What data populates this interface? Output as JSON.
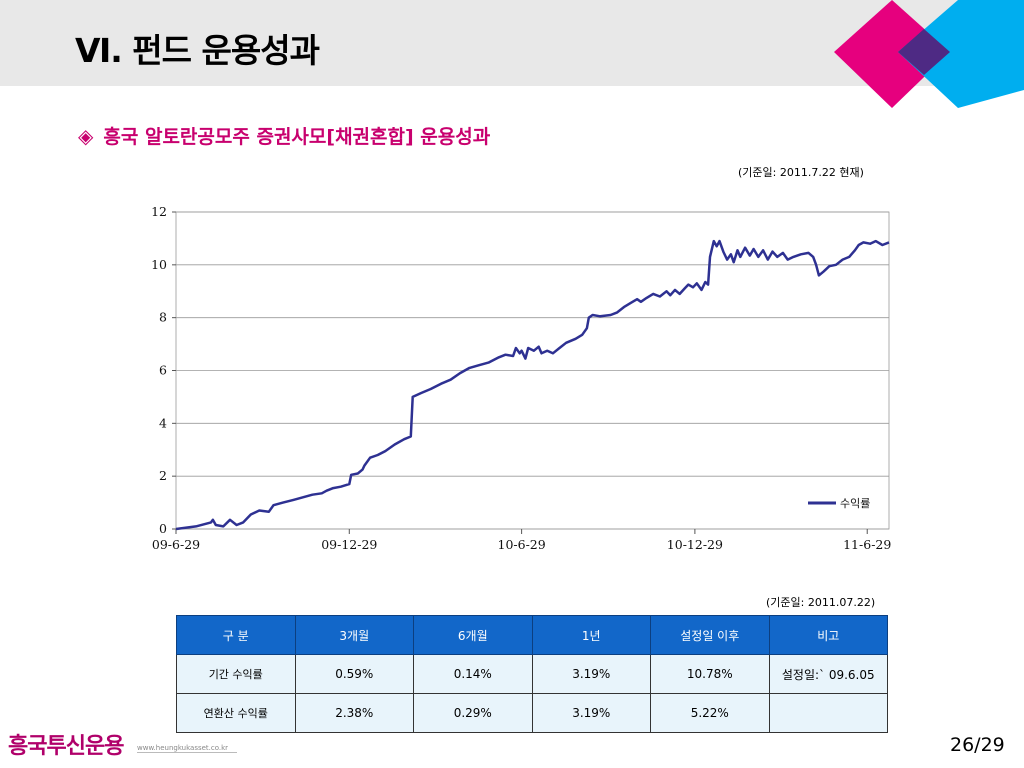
{
  "header": {
    "title": "Ⅵ. 펀드 운용성과"
  },
  "colors": {
    "accent_pink": "#e6007e",
    "accent_cyan": "#00aeef",
    "accent_purple": "#4e2a84",
    "line_blue": "#2e3192",
    "table_header_blue": "#1267c9",
    "table_cell_bg": "#e8f4fb",
    "logo_magenta": "#b0006a"
  },
  "section": {
    "icon": "diamond-icon",
    "icon_glyph": "◈",
    "title": "흥국 알토란공모주 증권사모[채권혼합] 운용성과"
  },
  "chart_basedate": "(기준일:  2011.7.22  현재)",
  "chart_data": {
    "type": "line",
    "title": "",
    "xlabel": "",
    "ylabel": "",
    "x_ticks": [
      "09-6-29",
      "09-12-29",
      "10-6-29",
      "10-12-29",
      "11-6-29"
    ],
    "y_ticks": [
      "0",
      "2",
      "4",
      "6",
      "8",
      "10",
      "12"
    ],
    "xlim": [
      "2009-06-29",
      "2011-07-22"
    ],
    "ylim": [
      0,
      12
    ],
    "grid": "horizontal",
    "legend": "bottom-right",
    "series": [
      {
        "name": "수익률",
        "color": "#2e3192",
        "points": [
          [
            "2009-06-29",
            0.0
          ],
          [
            "2009-07-20",
            0.1
          ],
          [
            "2009-08-05",
            0.25
          ],
          [
            "2009-08-07",
            0.35
          ],
          [
            "2009-08-10",
            0.15
          ],
          [
            "2009-08-18",
            0.1
          ],
          [
            "2009-08-25",
            0.35
          ],
          [
            "2009-09-01",
            0.15
          ],
          [
            "2009-09-08",
            0.25
          ],
          [
            "2009-09-16",
            0.55
          ],
          [
            "2009-09-25",
            0.7
          ],
          [
            "2009-10-05",
            0.65
          ],
          [
            "2009-10-10",
            0.9
          ],
          [
            "2009-10-20",
            1.0
          ],
          [
            "2009-10-31",
            1.1
          ],
          [
            "2009-11-10",
            1.2
          ],
          [
            "2009-11-20",
            1.3
          ],
          [
            "2009-11-30",
            1.35
          ],
          [
            "2009-12-05",
            1.45
          ],
          [
            "2009-12-12",
            1.55
          ],
          [
            "2009-12-20",
            1.6
          ],
          [
            "2009-12-29",
            1.7
          ],
          [
            "2009-12-31",
            2.05
          ],
          [
            "2010-01-07",
            2.1
          ],
          [
            "2010-01-12",
            2.25
          ],
          [
            "2010-01-14",
            2.4
          ],
          [
            "2010-01-20",
            2.7
          ],
          [
            "2010-01-28",
            2.8
          ],
          [
            "2010-02-05",
            2.95
          ],
          [
            "2010-02-15",
            3.2
          ],
          [
            "2010-02-25",
            3.4
          ],
          [
            "2010-03-04",
            3.5
          ],
          [
            "2010-03-06",
            5.0
          ],
          [
            "2010-03-15",
            5.15
          ],
          [
            "2010-03-25",
            5.3
          ],
          [
            "2010-04-05",
            5.5
          ],
          [
            "2010-04-15",
            5.65
          ],
          [
            "2010-04-25",
            5.9
          ],
          [
            "2010-05-05",
            6.1
          ],
          [
            "2010-05-15",
            6.2
          ],
          [
            "2010-05-25",
            6.3
          ],
          [
            "2010-06-05",
            6.5
          ],
          [
            "2010-06-12",
            6.6
          ],
          [
            "2010-06-20",
            6.55
          ],
          [
            "2010-06-23",
            6.85
          ],
          [
            "2010-06-27",
            6.65
          ],
          [
            "2010-06-29",
            6.75
          ],
          [
            "2010-07-03",
            6.45
          ],
          [
            "2010-07-06",
            6.85
          ],
          [
            "2010-07-12",
            6.75
          ],
          [
            "2010-07-17",
            6.9
          ],
          [
            "2010-07-20",
            6.65
          ],
          [
            "2010-07-26",
            6.75
          ],
          [
            "2010-08-01",
            6.65
          ],
          [
            "2010-08-08",
            6.85
          ],
          [
            "2010-08-15",
            7.05
          ],
          [
            "2010-08-25",
            7.2
          ],
          [
            "2010-09-01",
            7.35
          ],
          [
            "2010-09-06",
            7.6
          ],
          [
            "2010-09-08",
            8.0
          ],
          [
            "2010-09-12",
            8.1
          ],
          [
            "2010-09-20",
            8.05
          ],
          [
            "2010-10-01",
            8.1
          ],
          [
            "2010-10-08",
            8.2
          ],
          [
            "2010-10-15",
            8.4
          ],
          [
            "2010-10-22",
            8.55
          ],
          [
            "2010-10-29",
            8.7
          ],
          [
            "2010-11-02",
            8.6
          ],
          [
            "2010-11-08",
            8.75
          ],
          [
            "2010-11-15",
            8.9
          ],
          [
            "2010-11-22",
            8.8
          ],
          [
            "2010-11-29",
            9.0
          ],
          [
            "2010-12-03",
            8.85
          ],
          [
            "2010-12-08",
            9.05
          ],
          [
            "2010-12-13",
            8.9
          ],
          [
            "2010-12-18",
            9.1
          ],
          [
            "2010-12-22",
            9.25
          ],
          [
            "2010-12-27",
            9.15
          ],
          [
            "2010-12-31",
            9.3
          ],
          [
            "2011-01-05",
            9.05
          ],
          [
            "2011-01-09",
            9.35
          ],
          [
            "2011-01-12",
            9.25
          ],
          [
            "2011-01-14",
            10.3
          ],
          [
            "2011-01-18",
            10.9
          ],
          [
            "2011-01-21",
            10.7
          ],
          [
            "2011-01-24",
            10.9
          ],
          [
            "2011-01-28",
            10.5
          ],
          [
            "2011-02-01",
            10.2
          ],
          [
            "2011-02-05",
            10.4
          ],
          [
            "2011-02-08",
            10.1
          ],
          [
            "2011-02-12",
            10.55
          ],
          [
            "2011-02-15",
            10.3
          ],
          [
            "2011-02-20",
            10.65
          ],
          [
            "2011-02-25",
            10.35
          ],
          [
            "2011-03-01",
            10.6
          ],
          [
            "2011-03-06",
            10.3
          ],
          [
            "2011-03-11",
            10.55
          ],
          [
            "2011-03-16",
            10.2
          ],
          [
            "2011-03-21",
            10.5
          ],
          [
            "2011-03-26",
            10.3
          ],
          [
            "2011-04-01",
            10.45
          ],
          [
            "2011-04-06",
            10.2
          ],
          [
            "2011-04-12",
            10.3
          ],
          [
            "2011-04-20",
            10.4
          ],
          [
            "2011-04-28",
            10.45
          ],
          [
            "2011-05-03",
            10.3
          ],
          [
            "2011-05-06",
            10.0
          ],
          [
            "2011-05-09",
            9.6
          ],
          [
            "2011-05-14",
            9.75
          ],
          [
            "2011-05-20",
            9.95
          ],
          [
            "2011-05-27",
            10.0
          ],
          [
            "2011-06-03",
            10.2
          ],
          [
            "2011-06-10",
            10.3
          ],
          [
            "2011-06-16",
            10.55
          ],
          [
            "2011-06-20",
            10.75
          ],
          [
            "2011-06-25",
            10.85
          ],
          [
            "2011-07-02",
            10.8
          ],
          [
            "2011-07-08",
            10.9
          ],
          [
            "2011-07-15",
            10.75
          ],
          [
            "2011-07-22",
            10.85
          ]
        ]
      }
    ]
  },
  "table_basedate": "(기준일:  2011.07.22)",
  "table": {
    "headers": [
      "구  분",
      "3개월",
      "6개월",
      "1년",
      "설정일 이후",
      "비고"
    ],
    "rows": [
      [
        "기간 수익률",
        "0.59%",
        "0.14%",
        "3.19%",
        "10.78%",
        "설정일:` 09.6.05"
      ],
      [
        "연환산 수익률",
        "2.38%",
        "0.29%",
        "3.19%",
        "5.22%",
        ""
      ]
    ]
  },
  "footer": {
    "logo_text": "흥국투신운용",
    "url": "www.heungkukasset.co.kr",
    "page_number": "26/29"
  }
}
